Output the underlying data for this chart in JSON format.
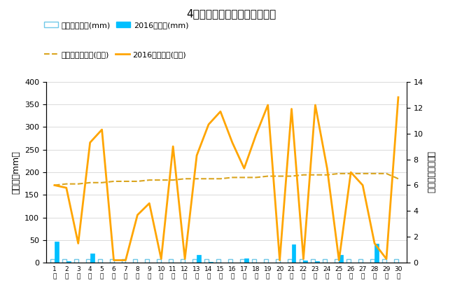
{
  "title": "4月降水量・日照時間（日別）",
  "days": [
    1,
    2,
    3,
    4,
    5,
    6,
    7,
    8,
    9,
    10,
    11,
    12,
    13,
    14,
    15,
    16,
    17,
    18,
    19,
    20,
    21,
    22,
    23,
    24,
    25,
    26,
    27,
    28,
    29,
    30
  ],
  "precip_2016": [
    47,
    3,
    0,
    20,
    0,
    0,
    0,
    0,
    0,
    0,
    0,
    0,
    18,
    2,
    0,
    0,
    10,
    0,
    0,
    0,
    40,
    5,
    3,
    0,
    18,
    0,
    0,
    43,
    0,
    0
  ],
  "precip_avg": [
    8,
    8,
    8,
    8,
    8,
    8,
    8,
    8,
    8,
    8,
    8,
    8,
    8,
    8,
    8,
    8,
    8,
    8,
    8,
    8,
    8,
    8,
    8,
    8,
    8,
    8,
    8,
    8,
    8,
    8
  ],
  "sunshine_2016": [
    6.0,
    5.8,
    1.5,
    9.3,
    10.3,
    0.2,
    0.2,
    3.7,
    4.6,
    0.3,
    9.0,
    0.3,
    8.3,
    10.7,
    11.7,
    9.3,
    7.3,
    9.9,
    12.2,
    0.2,
    11.9,
    0.3,
    12.2,
    7.3,
    0.2,
    7.0,
    6.0,
    1.5,
    0.3,
    12.8
  ],
  "sunshine_avg": [
    6.0,
    6.1,
    6.1,
    6.2,
    6.2,
    6.3,
    6.3,
    6.3,
    6.4,
    6.4,
    6.4,
    6.5,
    6.5,
    6.5,
    6.5,
    6.6,
    6.6,
    6.6,
    6.7,
    6.7,
    6.7,
    6.8,
    6.8,
    6.8,
    6.9,
    6.9,
    6.9,
    6.9,
    6.9,
    6.5
  ],
  "precip_color_avg_face": "white",
  "precip_color_avg_edge": "#70C8E8",
  "precip_color_2016": "#00BFFF",
  "sunshine_color_2016": "#FFA500",
  "sunshine_color_avg": "#DAA520",
  "ylabel_left": "降水量（mm）",
  "ylabel_right": "日照時間（時間）",
  "ylim_left": [
    0,
    400
  ],
  "ylim_right": [
    0,
    14
  ],
  "yticks_left": [
    0,
    50,
    100,
    150,
    200,
    250,
    300,
    350,
    400
  ],
  "yticks_right": [
    0,
    2,
    4,
    6,
    8,
    10,
    12,
    14
  ],
  "legend_precip_avg": "降水量平年値(mm)",
  "legend_precip_2016": "2016降水量(mm)",
  "legend_sunshine_avg": "日照時間平年値(時間)",
  "legend_sunshine_2016": "2016日照時間(時間)",
  "bar_width": 0.35
}
